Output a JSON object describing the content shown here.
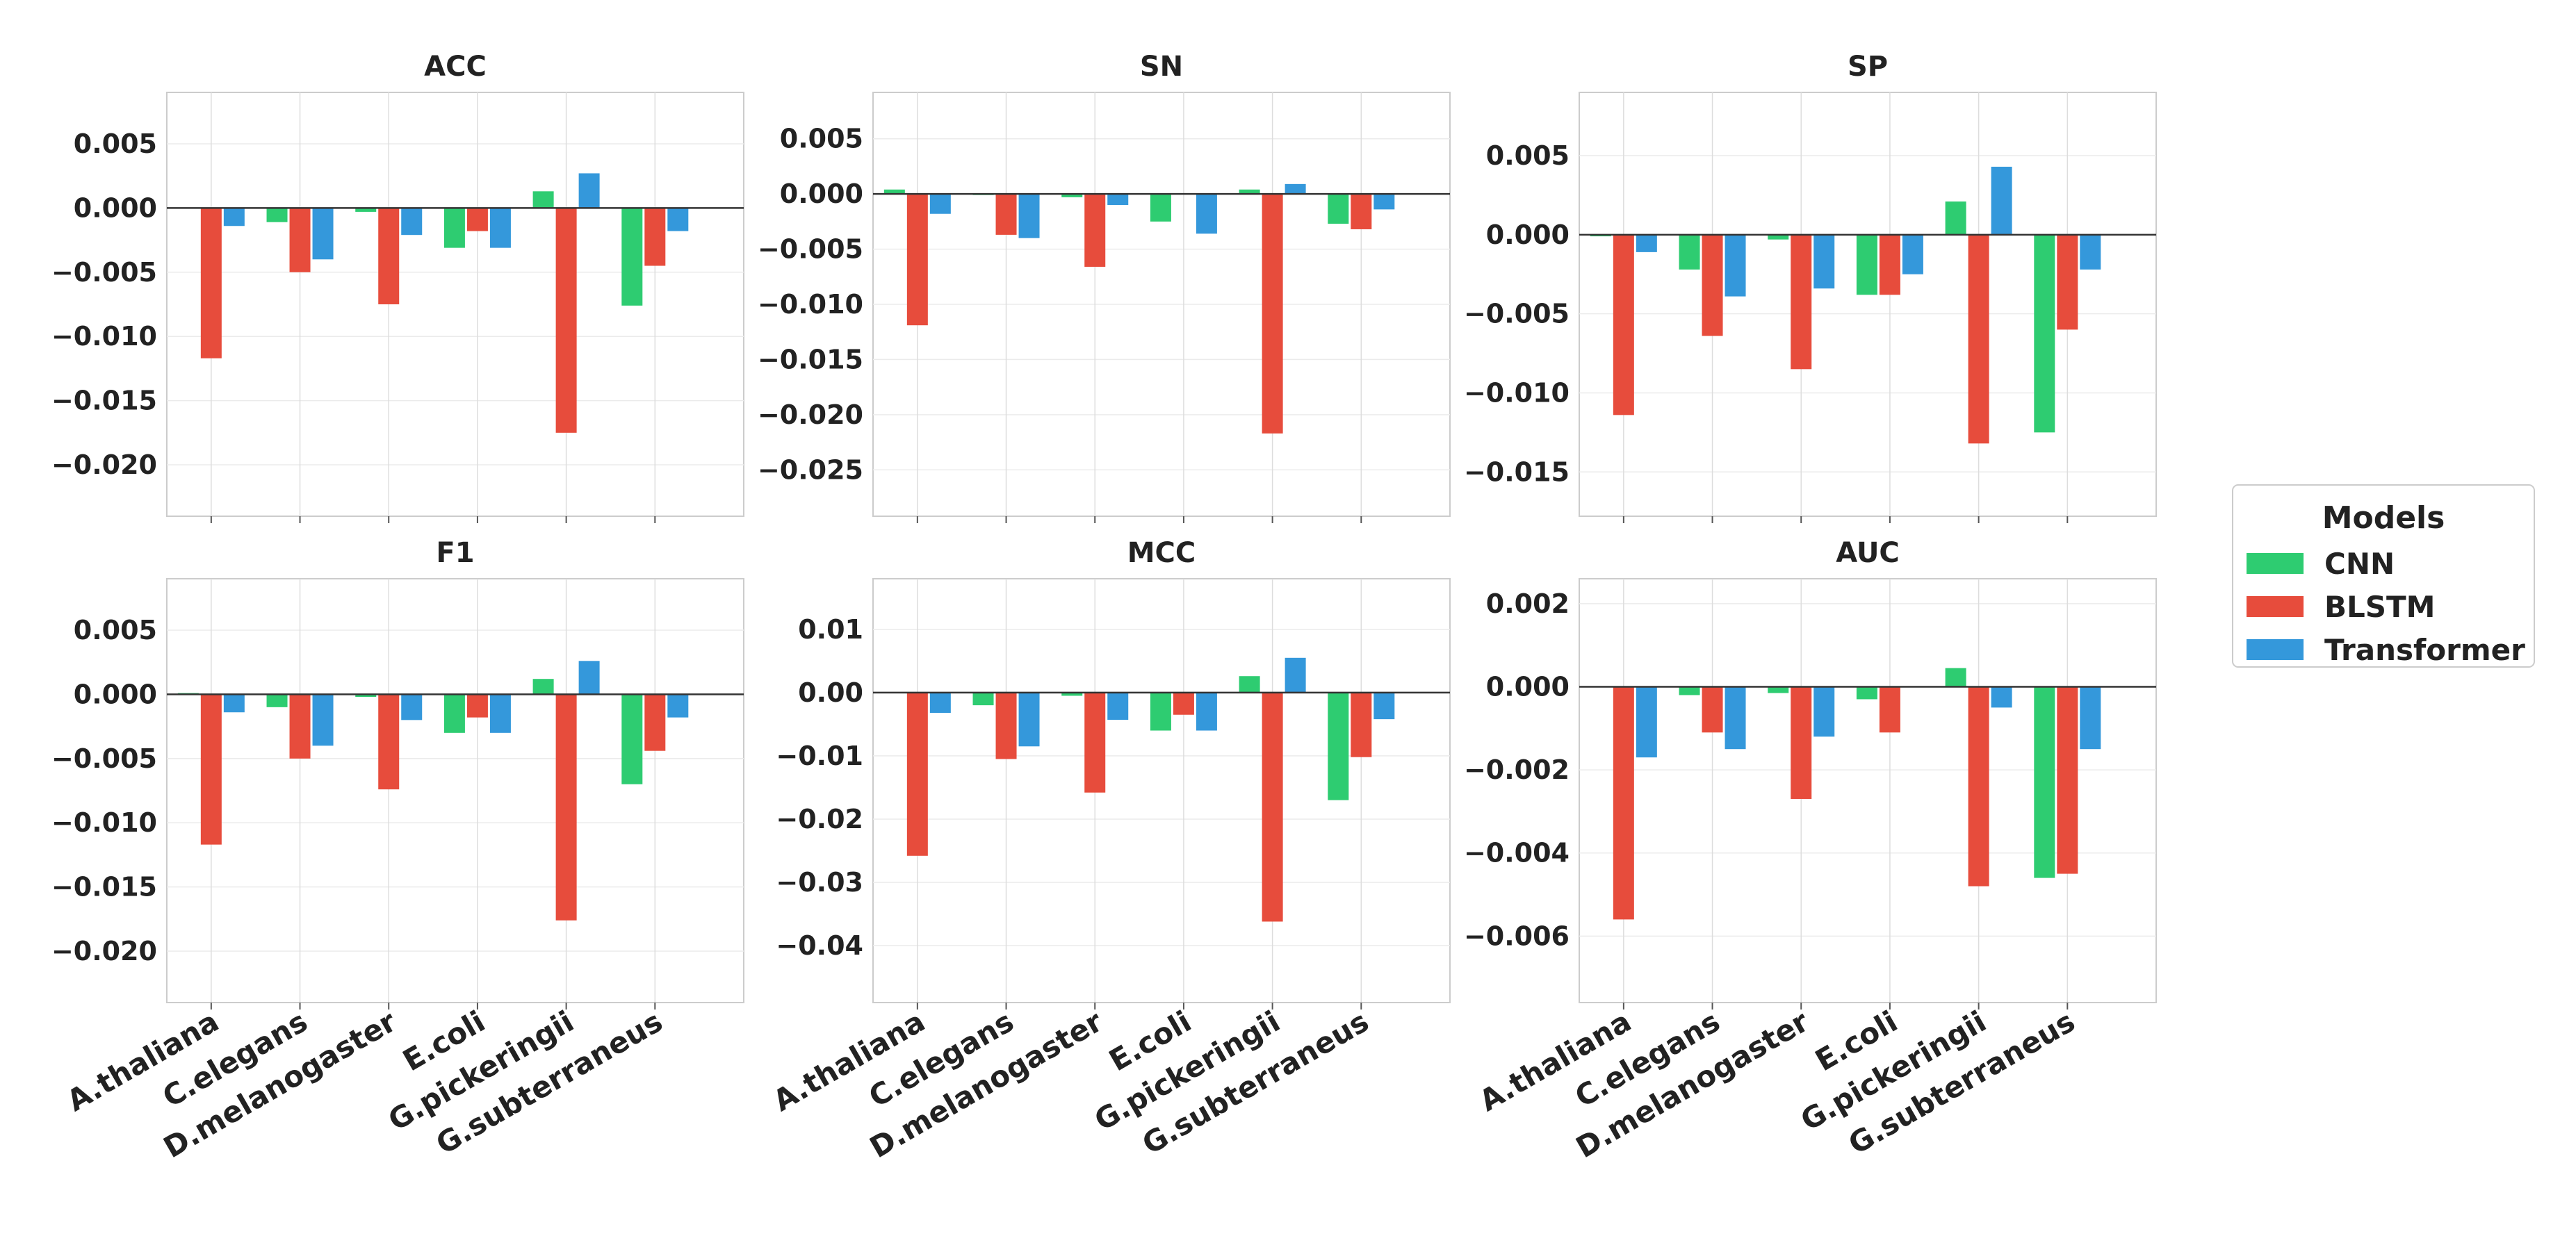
{
  "chart_data": {
    "type": "bar",
    "layout": {
      "rows": 2,
      "cols": 3
    },
    "categories": [
      "A.thaliana",
      "C.elegans",
      "D.melanogaster",
      "E.coli",
      "G.pickeringii",
      "G.subterraneus"
    ],
    "colors": {
      "CNN": "#2ecc71",
      "BLSTM": "#e74c3c",
      "Transformer": "#3498db"
    },
    "legend": {
      "title": "Models",
      "position": "center-right",
      "labels": [
        "CNN",
        "BLSTM",
        "Transformer"
      ]
    },
    "grid": true,
    "panels": [
      {
        "title": "ACC",
        "ylim": [
          -0.024,
          0.009
        ],
        "yticks": [
          0.005,
          0.0,
          -0.005,
          -0.01,
          -0.015,
          -0.02
        ],
        "ytick_labels": [
          "0.005",
          "0.000",
          "−0.005",
          "−0.010",
          "−0.015",
          "−0.020"
        ],
        "series": [
          {
            "name": "CNN",
            "values": [
              0.0,
              -0.0011,
              -0.0003,
              -0.0031,
              0.0013,
              -0.0076
            ]
          },
          {
            "name": "BLSTM",
            "values": [
              -0.0117,
              -0.005,
              -0.0075,
              -0.0018,
              -0.0175,
              -0.0045
            ]
          },
          {
            "name": "Transformer",
            "values": [
              -0.0014,
              -0.004,
              -0.0021,
              -0.0031,
              0.0027,
              -0.0018
            ]
          }
        ]
      },
      {
        "title": "SN",
        "ylim": [
          -0.0292,
          0.0092
        ],
        "yticks": [
          0.005,
          0.0,
          -0.005,
          -0.01,
          -0.015,
          -0.02,
          -0.025
        ],
        "ytick_labels": [
          "0.005",
          "0.000",
          "−0.005",
          "−0.010",
          "−0.015",
          "−0.020",
          "−0.025"
        ],
        "series": [
          {
            "name": "CNN",
            "values": [
              0.0004,
              -0.0001,
              -0.0003,
              -0.0025,
              0.0004,
              -0.0027
            ]
          },
          {
            "name": "BLSTM",
            "values": [
              -0.0119,
              -0.0037,
              -0.0066,
              0.0,
              -0.0217,
              -0.0032
            ]
          },
          {
            "name": "Transformer",
            "values": [
              -0.0018,
              -0.004,
              -0.001,
              -0.0036,
              0.0009,
              -0.0014
            ]
          }
        ]
      },
      {
        "title": "SP",
        "ylim": [
          -0.0178,
          0.009
        ],
        "yticks": [
          0.005,
          0.0,
          -0.005,
          -0.01,
          -0.015
        ],
        "ytick_labels": [
          "0.005",
          "0.000",
          "−0.005",
          "−0.010",
          "−0.015"
        ],
        "series": [
          {
            "name": "CNN",
            "values": [
              -0.0001,
              -0.0022,
              -0.0003,
              -0.0038,
              0.0021,
              -0.0125
            ]
          },
          {
            "name": "BLSTM",
            "values": [
              -0.0114,
              -0.0064,
              -0.0085,
              -0.0038,
              -0.0132,
              -0.006
            ]
          },
          {
            "name": "Transformer",
            "values": [
              -0.0011,
              -0.0039,
              -0.0034,
              -0.0025,
              0.0043,
              -0.0022
            ]
          }
        ]
      },
      {
        "title": "F1",
        "ylim": [
          -0.024,
          0.009
        ],
        "yticks": [
          0.005,
          0.0,
          -0.005,
          -0.01,
          -0.015,
          -0.02
        ],
        "ytick_labels": [
          "0.005",
          "0.000",
          "−0.005",
          "−0.010",
          "−0.015",
          "−0.020"
        ],
        "series": [
          {
            "name": "CNN",
            "values": [
              0.0001,
              -0.001,
              -0.0002,
              -0.003,
              0.0012,
              -0.007
            ]
          },
          {
            "name": "BLSTM",
            "values": [
              -0.0117,
              -0.005,
              -0.0074,
              -0.0018,
              -0.0176,
              -0.0044
            ]
          },
          {
            "name": "Transformer",
            "values": [
              -0.0014,
              -0.004,
              -0.002,
              -0.003,
              0.0026,
              -0.0018
            ]
          }
        ]
      },
      {
        "title": "MCC",
        "ylim": [
          -0.049,
          0.018
        ],
        "yticks": [
          0.01,
          0.0,
          -0.01,
          -0.02,
          -0.03,
          -0.04
        ],
        "ytick_labels": [
          "0.01",
          "0.00",
          "−0.01",
          "−0.02",
          "−0.03",
          "−0.04"
        ],
        "series": [
          {
            "name": "CNN",
            "values": [
              0.0,
              -0.002,
              -0.0005,
              -0.006,
              0.0026,
              -0.017
            ]
          },
          {
            "name": "BLSTM",
            "values": [
              -0.0258,
              -0.0105,
              -0.0158,
              -0.0035,
              -0.0362,
              -0.0102
            ]
          },
          {
            "name": "Transformer",
            "values": [
              -0.0032,
              -0.0085,
              -0.0043,
              -0.006,
              0.0055,
              -0.0042
            ]
          }
        ]
      },
      {
        "title": "AUC",
        "ylim": [
          -0.0076,
          0.0026
        ],
        "yticks": [
          0.002,
          0.0,
          -0.002,
          -0.004,
          -0.006
        ],
        "ytick_labels": [
          "0.002",
          "0.000",
          "−0.002",
          "−0.004",
          "−0.006"
        ],
        "series": [
          {
            "name": "CNN",
            "values": [
              0.0,
              -0.0002,
              -0.00015,
              -0.0003,
              0.00045,
              -0.0046
            ]
          },
          {
            "name": "BLSTM",
            "values": [
              -0.0056,
              -0.0011,
              -0.0027,
              -0.0011,
              -0.0048,
              -0.0045
            ]
          },
          {
            "name": "Transformer",
            "values": [
              -0.0017,
              -0.0015,
              -0.0012,
              0.0,
              -0.0005,
              -0.0015
            ]
          }
        ]
      }
    ]
  }
}
